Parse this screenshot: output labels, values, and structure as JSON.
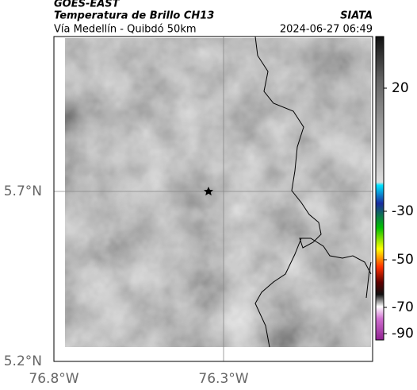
{
  "header": {
    "satellite": "GOES-EAST",
    "product": "Temperatura de Brillo CH13",
    "source": "SIATA",
    "region": "Vía Medellín - Quibdó 50km",
    "datetime": "2024-06-27 06:49"
  },
  "axes": {
    "lat_labels": [
      "5.7°N",
      "5.2°N"
    ],
    "lon_labels": [
      "76.8°W",
      "76.3°W"
    ]
  },
  "colorbar": {
    "ticks": [
      20,
      -30,
      -50,
      -70,
      -90
    ]
  }
}
